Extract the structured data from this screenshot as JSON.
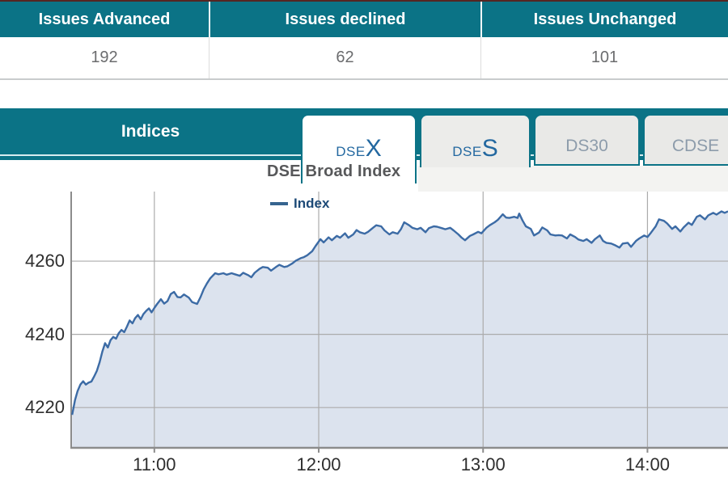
{
  "summary_table": {
    "columns": [
      {
        "label": "Issues Advanced",
        "value": "192"
      },
      {
        "label": "Issues declined",
        "value": "62"
      },
      {
        "label": "Issues Unchanged",
        "value": "101"
      }
    ]
  },
  "indices": {
    "title": "Indices",
    "tabs": [
      {
        "prefix": "DSE",
        "big": "X",
        "state": "active"
      },
      {
        "prefix": "DSE",
        "big": "S",
        "state": "inactive"
      },
      {
        "label": "DS30",
        "state": "inactive"
      },
      {
        "label": "CDSE",
        "state": "inactive"
      }
    ]
  },
  "colors": {
    "teal": "#0b7386",
    "tab_text_blue": "#2368a0",
    "line_blue": "#3c6ba5",
    "area_fill": "#dce3ee",
    "legend_blue": "#1d4a77",
    "grid_gray": "#ababab",
    "axis_gray": "#8c8c8c"
  },
  "chart_data": {
    "type": "area",
    "title": "DSE Broad Index",
    "xlabel": "",
    "ylabel": "",
    "grid": true,
    "legend_position": "top",
    "legend": [
      {
        "label": "Index",
        "color": "#36648f"
      }
    ],
    "xlim": [
      10.494,
      14.49
    ],
    "ylim": [
      4209,
      4279
    ],
    "yticks": [
      {
        "value": 4220,
        "label": "4220"
      },
      {
        "value": 4240,
        "label": "4240"
      },
      {
        "value": 4260,
        "label": "4260"
      }
    ],
    "xticks": [
      {
        "hour": 11,
        "label": "11:00"
      },
      {
        "hour": 12,
        "label": "12:00"
      },
      {
        "hour": 13,
        "label": "13:00"
      },
      {
        "hour": 14,
        "label": "14:00"
      }
    ],
    "series": [
      {
        "name": "Index",
        "color": "#3c6ba5",
        "fill": "#dce3ee",
        "points": [
          [
            10.5,
            4218.0
          ],
          [
            10.517,
            4222.0
          ],
          [
            10.533,
            4224.5
          ],
          [
            10.55,
            4226.3
          ],
          [
            10.567,
            4227.2
          ],
          [
            10.583,
            4226.3
          ],
          [
            10.6,
            4226.8
          ],
          [
            10.617,
            4227.1
          ],
          [
            10.633,
            4228.4
          ],
          [
            10.65,
            4230.0
          ],
          [
            10.667,
            4232.4
          ],
          [
            10.683,
            4235.2
          ],
          [
            10.7,
            4237.6
          ],
          [
            10.717,
            4236.4
          ],
          [
            10.733,
            4238.4
          ],
          [
            10.75,
            4239.3
          ],
          [
            10.767,
            4238.8
          ],
          [
            10.783,
            4240.3
          ],
          [
            10.8,
            4241.2
          ],
          [
            10.817,
            4240.6
          ],
          [
            10.833,
            4242.1
          ],
          [
            10.85,
            4243.8
          ],
          [
            10.867,
            4243.0
          ],
          [
            10.883,
            4244.4
          ],
          [
            10.9,
            4245.3
          ],
          [
            10.917,
            4244.1
          ],
          [
            10.933,
            4245.5
          ],
          [
            10.95,
            4246.4
          ],
          [
            10.967,
            4247.1
          ],
          [
            10.983,
            4246.0
          ],
          [
            11.0,
            4247.2
          ],
          [
            11.017,
            4248.3
          ],
          [
            11.04,
            4249.6
          ],
          [
            11.06,
            4248.4
          ],
          [
            11.08,
            4249.1
          ],
          [
            11.1,
            4251.0
          ],
          [
            11.12,
            4251.6
          ],
          [
            11.14,
            4250.2
          ],
          [
            11.16,
            4250.1
          ],
          [
            11.18,
            4250.9
          ],
          [
            11.21,
            4250.0
          ],
          [
            11.23,
            4248.8
          ],
          [
            11.26,
            4248.3
          ],
          [
            11.28,
            4250.1
          ],
          [
            11.3,
            4252.3
          ],
          [
            11.32,
            4253.9
          ],
          [
            11.34,
            4255.3
          ],
          [
            11.37,
            4256.7
          ],
          [
            11.39,
            4256.4
          ],
          [
            11.42,
            4256.7
          ],
          [
            11.44,
            4256.3
          ],
          [
            11.47,
            4256.7
          ],
          [
            11.49,
            4256.4
          ],
          [
            11.52,
            4256.0
          ],
          [
            11.54,
            4256.8
          ],
          [
            11.57,
            4256.2
          ],
          [
            11.59,
            4255.6
          ],
          [
            11.61,
            4256.8
          ],
          [
            11.64,
            4257.9
          ],
          [
            11.66,
            4258.4
          ],
          [
            11.69,
            4258.2
          ],
          [
            11.71,
            4257.4
          ],
          [
            11.74,
            4258.4
          ],
          [
            11.76,
            4259.0
          ],
          [
            11.79,
            4258.4
          ],
          [
            11.81,
            4258.6
          ],
          [
            11.84,
            4259.4
          ],
          [
            11.86,
            4260.1
          ],
          [
            11.89,
            4260.8
          ],
          [
            11.91,
            4261.1
          ],
          [
            11.93,
            4261.6
          ],
          [
            11.96,
            4262.7
          ],
          [
            11.98,
            4264.1
          ],
          [
            12.01,
            4266.0
          ],
          [
            12.03,
            4265.1
          ],
          [
            12.06,
            4266.5
          ],
          [
            12.08,
            4265.7
          ],
          [
            12.11,
            4266.9
          ],
          [
            12.13,
            4266.4
          ],
          [
            12.16,
            4267.6
          ],
          [
            12.18,
            4266.4
          ],
          [
            12.21,
            4267.3
          ],
          [
            12.23,
            4268.5
          ],
          [
            12.25,
            4267.9
          ],
          [
            12.28,
            4267.5
          ],
          [
            12.3,
            4268.0
          ],
          [
            12.33,
            4269.1
          ],
          [
            12.35,
            4269.8
          ],
          [
            12.38,
            4269.5
          ],
          [
            12.4,
            4268.4
          ],
          [
            12.43,
            4267.3
          ],
          [
            12.45,
            4267.9
          ],
          [
            12.48,
            4267.5
          ],
          [
            12.5,
            4268.7
          ],
          [
            12.52,
            4270.6
          ],
          [
            12.55,
            4269.8
          ],
          [
            12.57,
            4269.1
          ],
          [
            12.6,
            4268.7
          ],
          [
            12.62,
            4269.1
          ],
          [
            12.65,
            4267.9
          ],
          [
            12.67,
            4269.0
          ],
          [
            12.7,
            4269.5
          ],
          [
            12.72,
            4269.4
          ],
          [
            12.75,
            4269.0
          ],
          [
            12.77,
            4268.7
          ],
          [
            12.8,
            4269.1
          ],
          [
            12.82,
            4268.4
          ],
          [
            12.85,
            4267.3
          ],
          [
            12.87,
            4266.4
          ],
          [
            12.89,
            4265.7
          ],
          [
            12.92,
            4266.9
          ],
          [
            12.94,
            4267.3
          ],
          [
            12.97,
            4268.0
          ],
          [
            12.99,
            4267.6
          ],
          [
            13.02,
            4269.1
          ],
          [
            13.04,
            4269.8
          ],
          [
            13.07,
            4270.6
          ],
          [
            13.09,
            4271.3
          ],
          [
            13.12,
            4272.8
          ],
          [
            13.14,
            4271.9
          ],
          [
            13.16,
            4271.8
          ],
          [
            13.19,
            4272.1
          ],
          [
            13.21,
            4271.8
          ],
          [
            13.22,
            4273.0
          ],
          [
            13.24,
            4271.1
          ],
          [
            13.26,
            4269.5
          ],
          [
            13.29,
            4268.8
          ],
          [
            13.31,
            4267.0
          ],
          [
            13.34,
            4267.8
          ],
          [
            13.36,
            4269.2
          ],
          [
            13.39,
            4268.4
          ],
          [
            13.41,
            4267.3
          ],
          [
            13.44,
            4267.0
          ],
          [
            13.46,
            4267.1
          ],
          [
            13.48,
            4267.0
          ],
          [
            13.51,
            4266.2
          ],
          [
            13.53,
            4267.3
          ],
          [
            13.56,
            4266.6
          ],
          [
            13.58,
            4265.9
          ],
          [
            13.61,
            4265.5
          ],
          [
            13.63,
            4266.0
          ],
          [
            13.66,
            4265.0
          ],
          [
            13.68,
            4266.0
          ],
          [
            13.71,
            4267.0
          ],
          [
            13.73,
            4265.5
          ],
          [
            13.75,
            4265.0
          ],
          [
            13.78,
            4264.8
          ],
          [
            13.8,
            4264.4
          ],
          [
            13.83,
            4263.7
          ],
          [
            13.85,
            4264.8
          ],
          [
            13.88,
            4265.0
          ],
          [
            13.9,
            4263.9
          ],
          [
            13.93,
            4265.5
          ],
          [
            13.95,
            4266.2
          ],
          [
            13.98,
            4267.0
          ],
          [
            14.0,
            4266.6
          ],
          [
            14.02,
            4267.7
          ],
          [
            14.05,
            4269.5
          ],
          [
            14.07,
            4271.4
          ],
          [
            14.1,
            4271.0
          ],
          [
            14.12,
            4270.3
          ],
          [
            14.15,
            4268.8
          ],
          [
            14.17,
            4269.5
          ],
          [
            14.2,
            4268.1
          ],
          [
            14.22,
            4269.2
          ],
          [
            14.25,
            4270.5
          ],
          [
            14.27,
            4269.9
          ],
          [
            14.3,
            4272.1
          ],
          [
            14.32,
            4272.5
          ],
          [
            14.35,
            4271.4
          ],
          [
            14.37,
            4272.5
          ],
          [
            14.4,
            4273.2
          ],
          [
            14.42,
            4272.7
          ],
          [
            14.45,
            4273.6
          ],
          [
            14.47,
            4273.2
          ],
          [
            14.49,
            4273.6
          ]
        ]
      }
    ]
  }
}
